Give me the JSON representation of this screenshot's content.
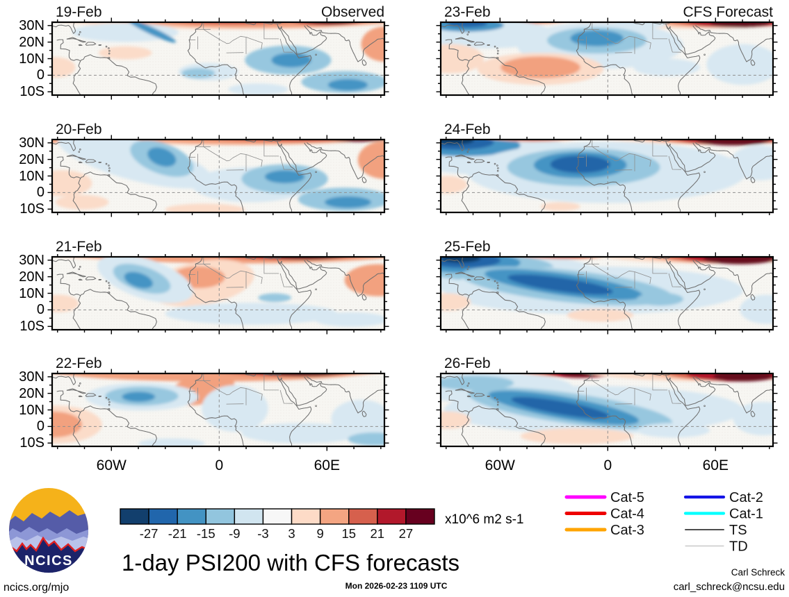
{
  "footer": {
    "logo_text": "NCICS",
    "url": "ncics.org/mjo",
    "timestamp": "Mon 2026-02-23 1109 UTC",
    "author": "Carl Schreck",
    "email": "carl_schreck@ncsu.edu",
    "title": "1-day PSI200 with CFS forecasts",
    "units": "x10^6 m2 s-1"
  },
  "legend": {
    "groups": [
      [
        {
          "label": "Cat-5",
          "color": "#ff00ff",
          "width": 5
        },
        {
          "label": "Cat-4",
          "color": "#ee0000",
          "width": 5
        },
        {
          "label": "Cat-3",
          "color": "#ffa400",
          "width": 5
        }
      ],
      [
        {
          "label": "Cat-2",
          "color": "#1414e6",
          "width": 4.2
        },
        {
          "label": "Cat-1",
          "color": "#00ffff",
          "width": 4.2
        },
        {
          "label": "TS",
          "color": "#4d4d4d",
          "width": 2
        },
        {
          "label": "TD",
          "color": "#b3b3b3",
          "width": 1.1
        }
      ]
    ]
  },
  "chart_data": {
    "type": "heatmap",
    "title": "1-day PSI200 with CFS forecasts",
    "units": "x10^6 m2 s-1",
    "lat_ticks": [
      "30N",
      "20N",
      "10N",
      "0",
      "10S"
    ],
    "lat_tick_values": [
      30,
      20,
      10,
      0,
      -10
    ],
    "lon_ticks": [
      "60W",
      "0",
      "60E"
    ],
    "lon_tick_values": [
      -60,
      0,
      60
    ],
    "lon_range": [
      -93,
      92
    ],
    "lat_range": [
      -12,
      32
    ],
    "columns": [
      {
        "header": "Observed"
      },
      {
        "header": "CFS Forecast"
      }
    ],
    "colorbar": {
      "levels": [
        -27,
        -21,
        -15,
        -9,
        -3,
        3,
        9,
        15,
        21,
        27
      ],
      "colors": [
        "#123f6d",
        "#2166ac",
        "#4393c3",
        "#92c5de",
        "#d1e5f0",
        "#f7f7f7",
        "#fddbc7",
        "#f4a582",
        "#d6604d",
        "#b2182b",
        "#67001f"
      ]
    },
    "palette": {
      "neg5": "#0d3a67",
      "neg4": "#2065a8",
      "neg3": "#4494c4",
      "neg2": "#97c7df",
      "neg1": "#d8e8f2",
      "pos1": "#fbdcc9",
      "pos2": "#f2a17f",
      "pos3": "#d6604d",
      "pos4": "#b2182b",
      "pos5": "#660a1c",
      "bg": "#f7f6f2"
    },
    "panels": [
      {
        "date": "19-Feb",
        "col": 0,
        "row": 0,
        "blobs": [
          [
            55,
            -22,
            70,
            32,
            "pos1"
          ],
          [
            62,
            -16,
            54,
            24,
            "pos2"
          ],
          [
            55,
            -10,
            28,
            13,
            "pos3"
          ],
          [
            55,
            -8,
            18,
            8,
            "pos4"
          ],
          [
            82,
            -12,
            18,
            15,
            "pos3"
          ],
          [
            83,
            -7,
            13,
            11,
            "pos4"
          ],
          [
            84,
            -3,
            8,
            6,
            "pos5"
          ],
          [
            100,
            30,
            7,
            24,
            "pos2"
          ],
          [
            22,
            14,
            16,
            13,
            "neg1"
          ],
          [
            30,
            12,
            8,
            5,
            "neg3",
            25
          ],
          [
            47,
            68,
            9,
            12,
            "neg1"
          ],
          [
            44,
            70,
            5,
            7,
            "neg2"
          ],
          [
            71,
            52,
            13,
            20,
            "neg2"
          ],
          [
            72,
            52,
            6,
            10,
            "neg3"
          ],
          [
            88,
            82,
            13,
            15,
            "neg2"
          ],
          [
            89,
            86,
            6,
            8,
            "neg3"
          ],
          [
            22,
            42,
            8,
            9,
            "pos1"
          ],
          [
            1,
            62,
            6,
            14,
            "pos1"
          ],
          [
            62,
            92,
            9,
            8,
            "neg1"
          ]
        ]
      },
      {
        "date": "20-Feb",
        "col": 0,
        "row": 1,
        "blobs": [
          [
            50,
            -24,
            72,
            32,
            "pos1"
          ],
          [
            60,
            -18,
            55,
            25,
            "pos2"
          ],
          [
            70,
            -14,
            38,
            17,
            "pos3"
          ],
          [
            81,
            -10,
            22,
            11,
            "pos4"
          ],
          [
            92,
            -5,
            11,
            8,
            "pos5"
          ],
          [
            100,
            28,
            8,
            26,
            "pos2"
          ],
          [
            1,
            -4,
            9,
            9,
            "pos2"
          ],
          [
            25,
            28,
            24,
            28,
            "neg1",
            15
          ],
          [
            33,
            26,
            10,
            21,
            "neg2",
            20
          ],
          [
            33,
            24,
            4.5,
            12,
            "neg3",
            20
          ],
          [
            60,
            62,
            18,
            24,
            "neg1"
          ],
          [
            70,
            54,
            13,
            20,
            "neg2"
          ],
          [
            70,
            51,
            6,
            9,
            "neg3"
          ],
          [
            88,
            82,
            14,
            16,
            "neg2"
          ],
          [
            89,
            86,
            7,
            8,
            "neg3"
          ],
          [
            2,
            56,
            6,
            12,
            "pos2"
          ],
          [
            3,
            60,
            9,
            18,
            "pos1"
          ],
          [
            9,
            86,
            8,
            10,
            "pos1"
          ],
          [
            46,
            96,
            12,
            8,
            "pos1"
          ]
        ]
      },
      {
        "date": "21-Feb",
        "col": 0,
        "row": 2,
        "blobs": [
          [
            50,
            -22,
            72,
            30,
            "pos1"
          ],
          [
            57,
            -14,
            60,
            23,
            "pos2"
          ],
          [
            20,
            -13,
            18,
            11,
            "pos3"
          ],
          [
            70,
            -13,
            33,
            17,
            "pos3"
          ],
          [
            74,
            -8,
            21,
            12,
            "pos4"
          ],
          [
            77,
            -4,
            12,
            8,
            "pos5"
          ],
          [
            45,
            36,
            16,
            30,
            "pos1",
            -10
          ],
          [
            44,
            28,
            8,
            15,
            "pos2"
          ],
          [
            98,
            32,
            10,
            22,
            "pos2"
          ],
          [
            28,
            30,
            15,
            27,
            "neg1",
            18
          ],
          [
            27,
            30,
            9,
            17,
            "neg2",
            18
          ],
          [
            26,
            32,
            4.5,
            10,
            "neg3",
            18
          ],
          [
            60,
            78,
            26,
            15,
            "neg1"
          ],
          [
            67,
            56,
            5,
            6,
            "neg2"
          ],
          [
            2,
            64,
            6,
            12,
            "pos1"
          ],
          [
            90,
            86,
            11,
            10,
            "neg1"
          ]
        ]
      },
      {
        "date": "22-Feb",
        "col": 0,
        "row": 3,
        "blobs": [
          [
            50,
            -22,
            72,
            30,
            "pos1"
          ],
          [
            48,
            -12,
            56,
            23,
            "pos2"
          ],
          [
            24,
            -14,
            20,
            12,
            "pos3"
          ],
          [
            71,
            -11,
            27,
            15,
            "pos3"
          ],
          [
            74,
            -7,
            19,
            11,
            "pos4"
          ],
          [
            76,
            -3,
            12,
            7,
            "pos5"
          ],
          [
            45,
            22,
            10,
            20,
            "pos2",
            -12
          ],
          [
            1,
            70,
            14,
            26,
            "pos1"
          ],
          [
            0,
            70,
            9,
            18,
            "pos2"
          ],
          [
            27,
            32,
            17,
            19,
            "neg1"
          ],
          [
            27,
            31,
            11,
            13,
            "neg2"
          ],
          [
            26,
            32,
            5,
            7,
            "neg3"
          ],
          [
            55,
            48,
            10,
            32,
            "neg1"
          ],
          [
            75,
            82,
            18,
            14,
            "neg1"
          ],
          [
            93,
            62,
            9,
            26,
            "neg1"
          ],
          [
            97,
            90,
            8,
            9,
            "neg2"
          ],
          [
            36,
            96,
            10,
            7,
            "neg1"
          ]
        ]
      },
      {
        "date": "23-Feb",
        "col": 1,
        "row": 0,
        "blobs": [
          [
            76,
            -18,
            46,
            27,
            "pos1"
          ],
          [
            85,
            -12,
            31,
            19,
            "pos2"
          ],
          [
            88,
            -6,
            21,
            13,
            "pos3"
          ],
          [
            89,
            -2,
            15,
            9,
            "pos4"
          ],
          [
            90,
            1,
            9,
            6,
            "pos5"
          ],
          [
            26,
            -16,
            26,
            16,
            "pos1"
          ],
          [
            25,
            -8,
            16,
            11,
            "pos2"
          ],
          [
            24,
            -5,
            8,
            6,
            "pos3"
          ],
          [
            14,
            16,
            20,
            20,
            "neg1"
          ],
          [
            8,
            4,
            11,
            9,
            "neg3"
          ],
          [
            8,
            2,
            6,
            5,
            "neg4"
          ],
          [
            60,
            2,
            8,
            7,
            "neg1"
          ],
          [
            48,
            32,
            25,
            32,
            "neg1"
          ],
          [
            47,
            25,
            15,
            18,
            "neg2"
          ],
          [
            47,
            22,
            8,
            11,
            "neg3"
          ],
          [
            2,
            46,
            7,
            14,
            "pos2"
          ],
          [
            3,
            50,
            10,
            20,
            "pos1"
          ],
          [
            30,
            64,
            19,
            22,
            "pos1"
          ],
          [
            30,
            62,
            12,
            15,
            "pos2"
          ],
          [
            68,
            62,
            10,
            12,
            "neg1"
          ],
          [
            91,
            58,
            11,
            28,
            "neg1"
          ]
        ]
      },
      {
        "date": "24-Feb",
        "col": 1,
        "row": 1,
        "blobs": [
          [
            16,
            22,
            27,
            27,
            "neg1"
          ],
          [
            7,
            8,
            17,
            15,
            "neg3"
          ],
          [
            5,
            4,
            11,
            10,
            "neg4"
          ],
          [
            4,
            1,
            6,
            6,
            "neg5"
          ],
          [
            28,
            -18,
            28,
            17,
            "pos1"
          ],
          [
            28,
            -9,
            17,
            12,
            "pos2"
          ],
          [
            28,
            -5,
            9,
            7,
            "pos3"
          ],
          [
            78,
            -18,
            42,
            24,
            "pos1"
          ],
          [
            85,
            -13,
            31,
            20,
            "pos2"
          ],
          [
            86,
            -8,
            23,
            14,
            "pos3"
          ],
          [
            87,
            -3,
            16,
            10,
            "pos4"
          ],
          [
            88,
            1,
            11,
            7,
            "pos5"
          ],
          [
            50,
            45,
            42,
            42,
            "neg1"
          ],
          [
            43,
            38,
            23,
            26,
            "neg2"
          ],
          [
            42,
            35,
            14,
            18,
            "neg3"
          ],
          [
            42,
            34,
            9,
            12,
            "neg4"
          ],
          [
            2,
            62,
            6,
            12,
            "pos1"
          ],
          [
            36,
            92,
            6,
            6,
            "pos1"
          ],
          [
            96,
            32,
            9,
            24,
            "neg1"
          ]
        ]
      },
      {
        "date": "25-Feb",
        "col": 1,
        "row": 2,
        "blobs": [
          [
            18,
            24,
            30,
            28,
            "neg1"
          ],
          [
            14,
            15,
            20,
            18,
            "neg2"
          ],
          [
            8,
            8,
            16,
            14,
            "neg3"
          ],
          [
            7,
            5,
            11,
            10,
            "neg4"
          ],
          [
            6,
            2,
            6,
            6,
            "neg5"
          ],
          [
            40,
            -20,
            35,
            21,
            "pos1"
          ],
          [
            38,
            -13,
            22,
            16,
            "pos2"
          ],
          [
            38,
            -8,
            13,
            10,
            "pos3"
          ],
          [
            80,
            -16,
            42,
            25,
            "pos1"
          ],
          [
            86,
            -13,
            31,
            22,
            "pos2"
          ],
          [
            87,
            -7,
            23,
            15,
            "pos3"
          ],
          [
            88,
            -2,
            16,
            11,
            "pos4"
          ],
          [
            90,
            2,
            11,
            8,
            "pos5"
          ],
          [
            46,
            46,
            45,
            33,
            "neg1"
          ],
          [
            38,
            40,
            32,
            22,
            "neg2",
            6
          ],
          [
            37,
            38,
            24,
            15,
            "neg3",
            8
          ],
          [
            36,
            38,
            16,
            9.5,
            "neg4",
            8
          ],
          [
            66,
            58,
            7,
            9,
            "neg2"
          ],
          [
            48,
            80,
            10,
            9,
            "pos1"
          ],
          [
            2,
            62,
            7,
            12,
            "pos1"
          ],
          [
            98,
            72,
            8,
            20,
            "neg1"
          ]
        ]
      },
      {
        "date": "26-Feb",
        "col": 1,
        "row": 3,
        "blobs": [
          [
            15,
            20,
            25,
            21,
            "neg1"
          ],
          [
            10,
            13,
            12,
            10,
            "neg2"
          ],
          [
            45,
            -20,
            37,
            23,
            "pos1"
          ],
          [
            42,
            -14,
            25,
            19,
            "pos2"
          ],
          [
            42,
            -8,
            17,
            13,
            "pos3"
          ],
          [
            42,
            -3,
            11,
            9,
            "pos4"
          ],
          [
            42,
            0,
            6,
            5,
            "pos5"
          ],
          [
            80,
            -14,
            42,
            25,
            "pos1"
          ],
          [
            87,
            -11,
            29,
            21,
            "pos2"
          ],
          [
            88,
            -5,
            21,
            15,
            "pos3"
          ],
          [
            89,
            0,
            15,
            11,
            "pos4"
          ],
          [
            91,
            4,
            9,
            7,
            "pos5"
          ],
          [
            46,
            50,
            45,
            33,
            "neg1"
          ],
          [
            39,
            48,
            31,
            21,
            "neg2",
            8
          ],
          [
            37,
            47,
            23,
            15,
            "neg3",
            10
          ],
          [
            36,
            47,
            15,
            9,
            "neg4",
            10
          ],
          [
            41,
            86,
            17,
            11,
            "pos1"
          ],
          [
            2,
            64,
            7,
            12,
            "pos1"
          ],
          [
            97,
            62,
            9,
            23,
            "neg1"
          ],
          [
            70,
            78,
            11,
            10,
            "neg1"
          ]
        ]
      }
    ]
  }
}
